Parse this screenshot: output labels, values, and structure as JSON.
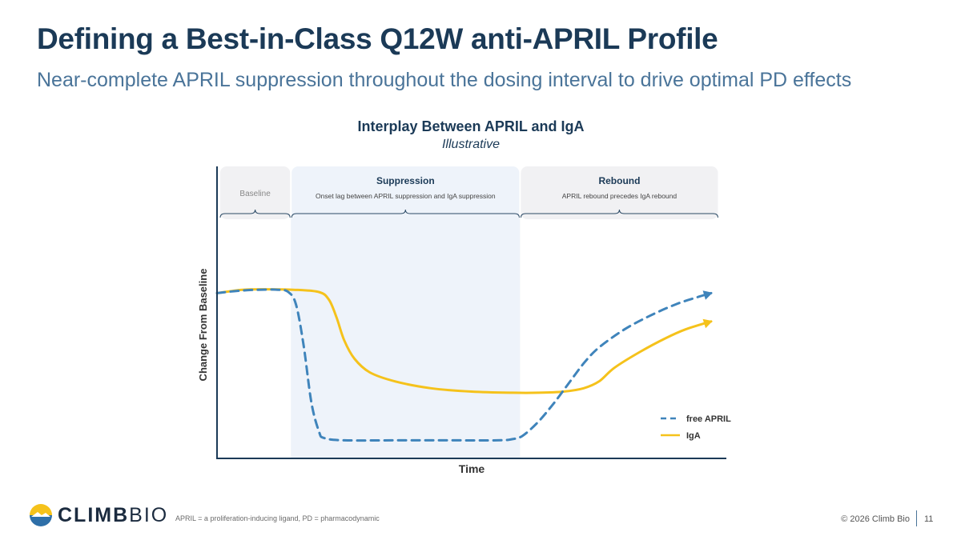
{
  "header": {
    "title": "Defining a Best-in-Class Q12W anti-APRIL Profile",
    "subtitle": "Near-complete APRIL suppression throughout the dosing interval to drive optimal PD effects"
  },
  "chart_data": {
    "type": "line",
    "title": "Interplay Between APRIL and IgA",
    "subtitle": "Illustrative",
    "xlabel": "Time",
    "ylabel": "Change From Baseline",
    "grid": false,
    "legend_position": "bottom-right",
    "x_range": [
      0,
      100
    ],
    "y_range": [
      0,
      100
    ],
    "phases": [
      {
        "name": "Baseline",
        "description": "",
        "x_start": 0,
        "x_end": 14.5,
        "shaded": false
      },
      {
        "name": "Suppression",
        "description": "Onset lag between APRIL suppression and IgA suppression",
        "x_start": 14.5,
        "x_end": 59.5,
        "shaded": true
      },
      {
        "name": "Rebound",
        "description": "APRIL rebound precedes IgA rebound",
        "x_start": 59.5,
        "x_end": 98.5,
        "shaded": false
      }
    ],
    "series": [
      {
        "name": "free APRIL",
        "color": "#3f84bb",
        "style": "dashed",
        "points": [
          [
            0,
            73
          ],
          [
            4,
            74
          ],
          [
            8,
            74.5
          ],
          [
            12,
            74.5
          ],
          [
            14,
            73.5
          ],
          [
            15.5,
            68
          ],
          [
            17,
            50
          ],
          [
            18.5,
            25
          ],
          [
            20,
            12
          ],
          [
            21,
            9
          ],
          [
            25,
            8
          ],
          [
            35,
            8
          ],
          [
            45,
            8
          ],
          [
            55,
            8
          ],
          [
            58,
            8.5
          ],
          [
            60,
            10
          ],
          [
            63,
            16
          ],
          [
            66,
            24
          ],
          [
            69,
            33
          ],
          [
            72,
            42
          ],
          [
            75,
            49
          ],
          [
            80,
            57
          ],
          [
            85,
            63
          ],
          [
            90,
            68
          ],
          [
            94,
            71
          ],
          [
            97,
            73
          ]
        ]
      },
      {
        "name": "IgA",
        "color": "#f5c21b",
        "style": "solid",
        "points": [
          [
            0,
            73
          ],
          [
            5,
            74.5
          ],
          [
            10,
            74.7
          ],
          [
            15,
            74.5
          ],
          [
            20,
            73.5
          ],
          [
            22,
            70
          ],
          [
            23.5,
            62
          ],
          [
            25,
            52
          ],
          [
            27,
            44
          ],
          [
            30,
            38
          ],
          [
            35,
            34
          ],
          [
            42,
            31
          ],
          [
            50,
            29.5
          ],
          [
            58,
            29
          ],
          [
            63,
            29
          ],
          [
            68,
            29.5
          ],
          [
            72,
            31
          ],
          [
            75,
            34
          ],
          [
            78,
            40
          ],
          [
            83,
            47
          ],
          [
            88,
            53
          ],
          [
            92,
            57
          ],
          [
            97,
            60.5
          ]
        ]
      }
    ]
  },
  "footer": {
    "logo_word_1": "CLIMB",
    "logo_word_2": "BIO",
    "footnote": "APRIL = a proliferation-inducing ligand, PD = pharmacodynamic",
    "copyright": "© 2026 Climb Bio",
    "page_number": "11"
  },
  "colors": {
    "title": "#1b3a57",
    "subtitle": "#4a7499",
    "april_line": "#3f84bb",
    "iga_line": "#f5c21b",
    "suppression_shade": "#eef3fa",
    "phase_header_fill": "#f1f1f3",
    "axis": "#1b3a57"
  },
  "icons": {
    "logo": "mountain-sun-logo-icon"
  }
}
